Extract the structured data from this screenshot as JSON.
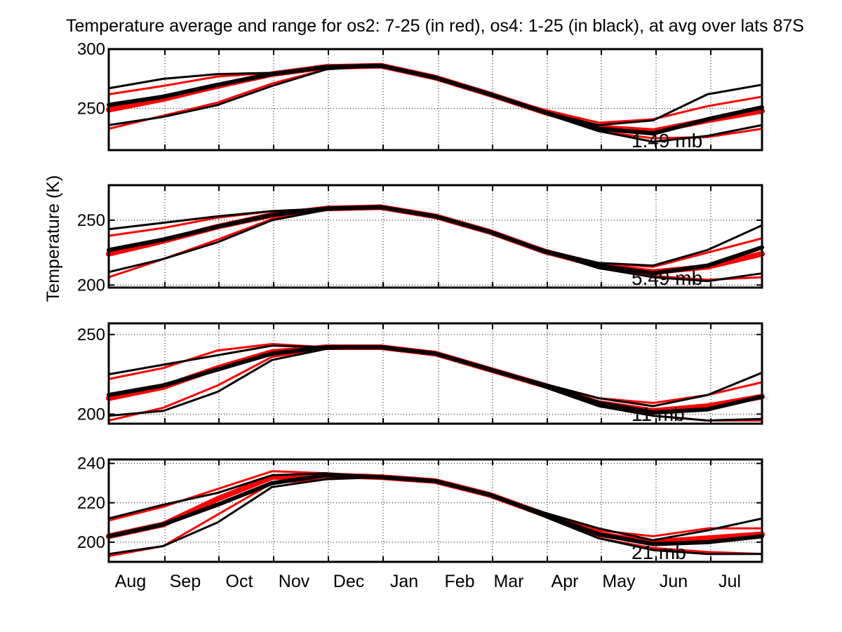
{
  "chart_data": {
    "type": "line",
    "title": "Temperature average and range for os2: 7-25 (in red), os4: 1-25 (in black),  at avg over lats 87S",
    "ylabel": "Temperature (K)",
    "xlabel": "",
    "x_tick_labels": [
      "Aug",
      "Sep",
      "Oct",
      "Nov",
      "Dec",
      "Jan",
      "Feb",
      "Mar",
      "Apr",
      "May",
      "Jun",
      "Jul"
    ],
    "grid": true,
    "colors": {
      "os2": "#ff0000",
      "os4": "#000000"
    },
    "series_note": "each panel: mean (thick), min and max (thin) for os2 (red) and os4 (black)",
    "panels": [
      {
        "label": "1.49 mb",
        "ylim": [
          215,
          300
        ],
        "yticks": [
          250,
          300
        ],
        "x": [
          "Aug",
          "Sep",
          "Oct",
          "Nov",
          "Dec",
          "Jan",
          "Feb",
          "Mar",
          "Apr",
          "May",
          "Jun",
          "Jul",
          "end"
        ],
        "os4": {
          "mean": [
            253,
            260,
            270,
            279,
            285,
            286,
            276,
            262,
            247,
            233,
            229,
            241,
            251
          ],
          "max": [
            267,
            275,
            279,
            280,
            285,
            286,
            276,
            262,
            247,
            236,
            240,
            262,
            270
          ],
          "min": [
            236,
            243,
            253,
            269,
            283,
            286,
            276,
            262,
            246,
            231,
            222,
            227,
            236
          ]
        },
        "os2": {
          "mean": [
            249,
            258,
            269,
            279,
            285,
            286,
            276,
            262,
            247,
            234,
            231,
            240,
            248
          ],
          "max": [
            262,
            269,
            277,
            280,
            285,
            286,
            276,
            262,
            249,
            238,
            241,
            252,
            260
          ],
          "min": [
            233,
            244,
            255,
            271,
            283,
            286,
            276,
            262,
            246,
            231,
            225,
            226,
            233
          ]
        }
      },
      {
        "label": "5.49 mb",
        "ylim": [
          198,
          277
        ],
        "yticks": [
          200,
          250
        ],
        "x": [
          "Aug",
          "Sep",
          "Oct",
          "Nov",
          "Dec",
          "Jan",
          "Feb",
          "Mar",
          "Apr",
          "May",
          "Jun",
          "Jul",
          "end"
        ],
        "os4": {
          "mean": [
            227,
            235,
            245,
            254,
            259,
            260,
            253,
            241,
            226,
            215,
            209,
            215,
            229
          ],
          "max": [
            243,
            248,
            253,
            257,
            259,
            260,
            253,
            241,
            227,
            217,
            215,
            227,
            246
          ],
          "min": [
            210,
            220,
            233,
            250,
            258,
            260,
            253,
            241,
            226,
            213,
            206,
            203,
            209
          ]
        },
        "os2": {
          "mean": [
            224,
            234,
            245,
            254,
            259,
            260,
            253,
            241,
            226,
            215,
            210,
            214,
            224
          ],
          "max": [
            238,
            244,
            252,
            257,
            259,
            260,
            253,
            241,
            227,
            217,
            214,
            225,
            236
          ],
          "min": [
            206,
            220,
            235,
            251,
            258,
            260,
            253,
            241,
            226,
            213,
            207,
            204,
            206
          ]
        }
      },
      {
        "label": "11 mb",
        "ylim": [
          194,
          257
        ],
        "yticks": [
          200,
          250
        ],
        "x": [
          "Aug",
          "Sep",
          "Oct",
          "Nov",
          "Dec",
          "Jan",
          "Feb",
          "Mar",
          "Apr",
          "May",
          "Jun",
          "Jul",
          "end"
        ],
        "os4": {
          "mean": [
            212,
            218,
            228,
            238,
            242,
            242,
            238,
            228,
            218,
            207,
            201,
            203,
            211
          ],
          "max": [
            225,
            231,
            237,
            243,
            242,
            242,
            238,
            228,
            219,
            210,
            205,
            212,
            226
          ],
          "min": [
            199,
            202,
            214,
            234,
            241,
            242,
            238,
            228,
            217,
            205,
            199,
            196,
            197
          ]
        },
        "os2": {
          "mean": [
            210,
            217,
            229,
            239,
            242,
            242,
            238,
            228,
            218,
            207,
            202,
            205,
            211
          ],
          "max": [
            222,
            229,
            240,
            244,
            242,
            242,
            238,
            228,
            219,
            210,
            207,
            212,
            220
          ],
          "min": [
            196,
            204,
            218,
            236,
            241,
            242,
            238,
            228,
            217,
            205,
            199,
            196,
            196
          ]
        }
      },
      {
        "label": "21 mb",
        "ylim": [
          190,
          242
        ],
        "yticks": [
          200,
          220,
          240
        ],
        "x": [
          "Aug",
          "Sep",
          "Oct",
          "Nov",
          "Dec",
          "Jan",
          "Feb",
          "Mar",
          "Apr",
          "May",
          "Jun",
          "Jul",
          "end"
        ],
        "os4": {
          "mean": [
            203,
            209,
            219,
            230,
            234,
            233,
            231,
            224,
            214,
            204,
            199,
            200,
            203
          ],
          "max": [
            212,
            219,
            225,
            234,
            235,
            233,
            231,
            224,
            215,
            207,
            201,
            206,
            212
          ],
          "min": [
            194,
            198,
            210,
            228,
            232,
            233,
            231,
            224,
            213,
            202,
            196,
            194,
            194
          ]
        },
        "os2": {
          "mean": [
            203,
            209,
            222,
            233,
            234,
            233,
            231,
            224,
            214,
            204,
            200,
            202,
            204
          ],
          "max": [
            211,
            218,
            227,
            236,
            235,
            233,
            231,
            224,
            215,
            206,
            203,
            207,
            207
          ],
          "min": [
            193,
            198,
            214,
            230,
            232,
            233,
            231,
            224,
            213,
            202,
            197,
            195,
            194
          ]
        }
      }
    ]
  }
}
